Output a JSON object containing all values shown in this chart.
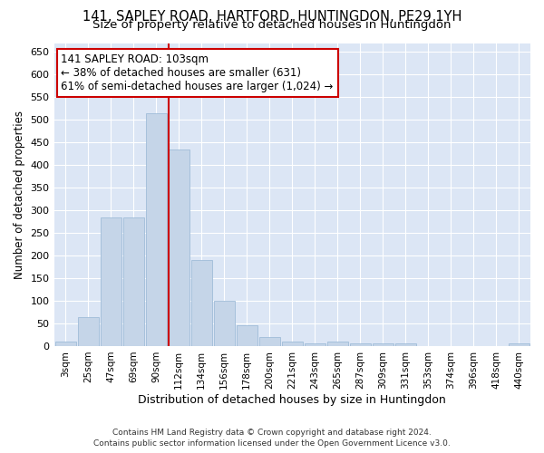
{
  "title": "141, SAPLEY ROAD, HARTFORD, HUNTINGDON, PE29 1YH",
  "subtitle": "Size of property relative to detached houses in Huntingdon",
  "xlabel": "Distribution of detached houses by size in Huntingdon",
  "ylabel": "Number of detached properties",
  "categories": [
    "3sqm",
    "25sqm",
    "47sqm",
    "69sqm",
    "90sqm",
    "112sqm",
    "134sqm",
    "156sqm",
    "178sqm",
    "200sqm",
    "221sqm",
    "243sqm",
    "265sqm",
    "287sqm",
    "309sqm",
    "331sqm",
    "353sqm",
    "374sqm",
    "396sqm",
    "418sqm",
    "440sqm"
  ],
  "values": [
    10,
    65,
    285,
    285,
    515,
    435,
    190,
    100,
    45,
    20,
    10,
    5,
    10,
    5,
    5,
    5,
    0,
    0,
    0,
    0,
    5
  ],
  "bar_color": "#c5d5e8",
  "bar_edge_color": "#a0bcd8",
  "vline_x": 5,
  "vline_color": "#cc0000",
  "annotation_text": "141 SAPLEY ROAD: 103sqm\n← 38% of detached houses are smaller (631)\n61% of semi-detached houses are larger (1,024) →",
  "annotation_box_facecolor": "#ffffff",
  "annotation_box_edgecolor": "#cc0000",
  "ylim": [
    0,
    670
  ],
  "yticks": [
    0,
    50,
    100,
    150,
    200,
    250,
    300,
    350,
    400,
    450,
    500,
    550,
    600,
    650
  ],
  "background_color": "#dce6f5",
  "footer_line1": "Contains HM Land Registry data © Crown copyright and database right 2024.",
  "footer_line2": "Contains public sector information licensed under the Open Government Licence v3.0.",
  "title_fontsize": 10.5,
  "subtitle_fontsize": 9.5,
  "annotation_fontsize": 8.5,
  "xlabel_fontsize": 9,
  "ylabel_fontsize": 8.5,
  "footer_fontsize": 6.5
}
